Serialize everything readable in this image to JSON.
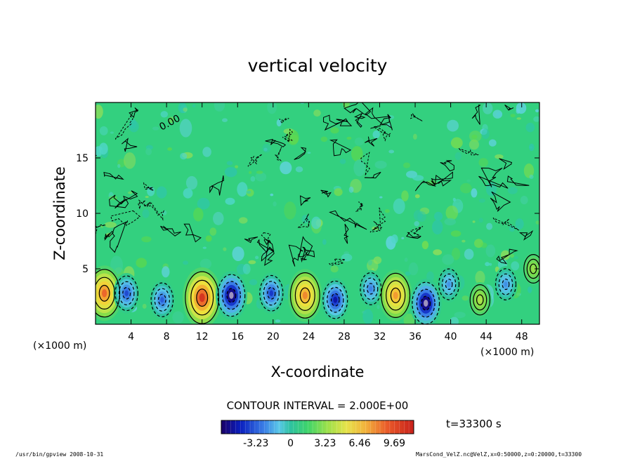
{
  "chart_data": {
    "type": "heatmap",
    "title": "vertical velocity",
    "xlabel": "X-coordinate",
    "ylabel": "Z-coordinate",
    "x_unit": "(×1000 m)",
    "x_ticks": [
      4,
      8,
      12,
      16,
      20,
      24,
      28,
      32,
      36,
      40,
      44,
      48
    ],
    "y_ticks": [
      5,
      10,
      15
    ],
    "xlim": [
      0,
      50
    ],
    "ylim": [
      0,
      20
    ],
    "contour_label": "0.00",
    "contour_interval_text": "CONTOUR INTERVAL = 2.000E+00",
    "colorbar": {
      "ticks": [
        -3.23,
        0,
        3.23,
        6.46,
        9.69
      ],
      "tick_labels": [
        "-3.23",
        "0",
        "3.23",
        "6.46",
        "9.69"
      ],
      "range": [
        -6.46,
        11.5
      ]
    },
    "cells": [
      {
        "x": 1.0,
        "z": 2.8,
        "w": 9.0
      },
      {
        "x": 3.5,
        "z": 2.8,
        "w": -4.5
      },
      {
        "x": 7.5,
        "z": 2.2,
        "w": -4.2
      },
      {
        "x": 12.0,
        "z": 2.4,
        "w": 10.5
      },
      {
        "x": 15.3,
        "z": 2.6,
        "w": -7.0
      },
      {
        "x": 19.8,
        "z": 2.8,
        "w": -4.8
      },
      {
        "x": 23.6,
        "z": 2.6,
        "w": 8.2
      },
      {
        "x": 27.0,
        "z": 2.2,
        "w": -5.5
      },
      {
        "x": 31.0,
        "z": 3.2,
        "w": -3.6
      },
      {
        "x": 33.8,
        "z": 2.6,
        "w": 7.8
      },
      {
        "x": 37.2,
        "z": 1.9,
        "w": -7.0
      },
      {
        "x": 39.8,
        "z": 3.6,
        "w": -3.2
      },
      {
        "x": 43.3,
        "z": 2.2,
        "w": 3.0
      },
      {
        "x": 46.2,
        "z": 3.6,
        "w": -3.3
      },
      {
        "x": 49.3,
        "z": 5.0,
        "w": 2.4
      }
    ],
    "time_label": "t=33300 s"
  },
  "footer": {
    "left": "/usr/bin/gpview   2008-10-31",
    "right": "MarsCond_VelZ.nc@VelZ,x=0:50000,z=0:20000,t=33300"
  }
}
